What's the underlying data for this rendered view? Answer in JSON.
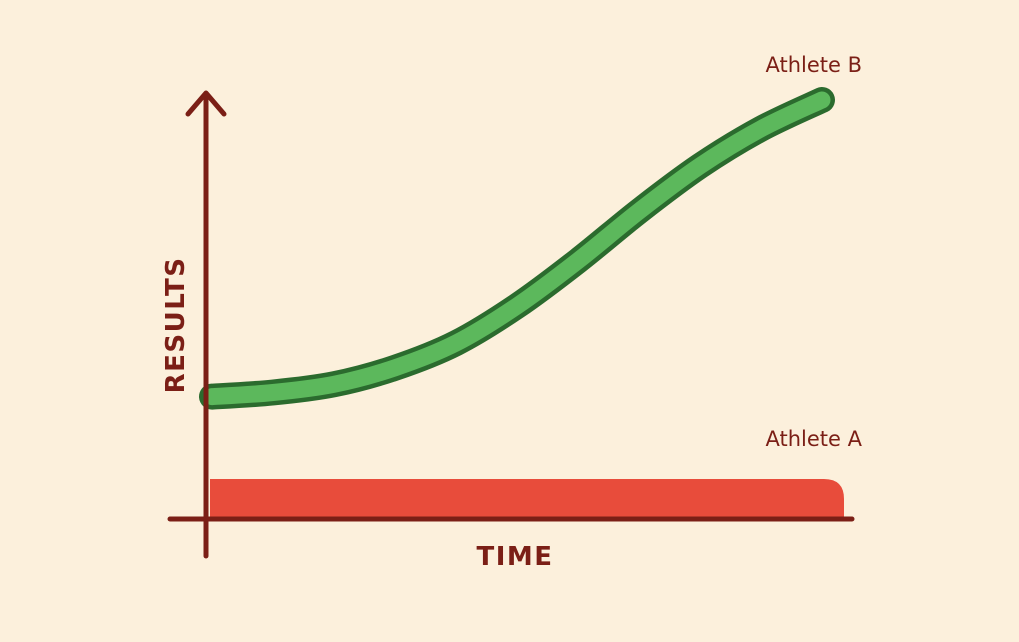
{
  "chart_data": {
    "type": "area",
    "xlabel": "TIME",
    "ylabel": "RESULTS",
    "xlim": [
      0,
      1
    ],
    "ylim": [
      0,
      1
    ],
    "grid": false,
    "legend": "none",
    "series": [
      {
        "name": "Athlete B",
        "type": "line",
        "color": "#5cb85c",
        "outline_color": "#2b6b2e",
        "x": [
          0,
          0.1,
          0.2,
          0.3,
          0.4,
          0.5,
          0.6,
          0.7,
          0.8,
          0.9,
          1.0
        ],
        "values": [
          0.28,
          0.29,
          0.31,
          0.35,
          0.41,
          0.5,
          0.61,
          0.73,
          0.84,
          0.93,
          1.0
        ]
      },
      {
        "name": "Athlete A",
        "type": "bar",
        "color": "#e84c3b",
        "x": [
          0,
          1
        ],
        "values": [
          0.085,
          0.085
        ]
      }
    ]
  },
  "colors": {
    "background": "#fcf0dc",
    "axis": "#7b1f16",
    "text": "#7b1f16"
  }
}
